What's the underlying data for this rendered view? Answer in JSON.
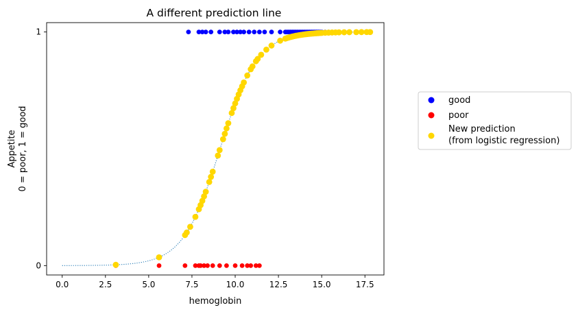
{
  "chart_data": {
    "type": "scatter",
    "title": "A different prediction line",
    "xlabel": "hemoglobin",
    "ylabel_lines": [
      "Appetite",
      "0 = poor, 1 = good"
    ],
    "xlim": [
      -0.9,
      18.6
    ],
    "ylim": [
      -0.04,
      1.04
    ],
    "x_ticks": [
      0.0,
      2.5,
      5.0,
      7.5,
      10.0,
      12.5,
      15.0,
      17.5
    ],
    "x_tick_labels": [
      "0.0",
      "2.5",
      "5.0",
      "7.5",
      "10.0",
      "12.5",
      "15.0",
      "17.5"
    ],
    "y_ticks": [
      0,
      1
    ],
    "y_tick_labels": [
      "0",
      "1"
    ],
    "legend_position": "outside-right",
    "grid": false,
    "logistic_curve": {
      "intercept": -8.54,
      "slope": 0.936,
      "x_range": [
        0,
        18
      ],
      "style": "dotted",
      "color": "#1f77b4"
    },
    "series": [
      {
        "name": "good",
        "color": "#0000ff",
        "y": 1,
        "x": [
          7.3,
          7.9,
          8.1,
          8.3,
          8.6,
          9.1,
          9.4,
          9.6,
          9.9,
          10.1,
          10.3,
          10.5,
          10.8,
          11.1,
          11.4,
          11.7,
          12.1,
          12.6,
          12.9,
          13.0,
          13.1,
          13.2,
          13.3,
          13.4,
          13.5,
          13.6,
          13.7,
          13.8,
          13.9,
          14.0,
          14.1,
          14.2,
          14.3,
          14.4,
          14.5,
          14.6,
          14.7,
          14.8,
          14.9,
          15.0,
          15.2,
          15.4,
          15.6,
          15.8,
          16.0,
          16.3,
          16.6,
          17.0,
          17.3,
          17.6
        ]
      },
      {
        "name": "poor",
        "color": "#ff0000",
        "y": 0,
        "x": [
          3.1,
          5.6,
          7.1,
          7.7,
          7.9,
          8.0,
          8.2,
          8.4,
          8.7,
          9.1,
          9.5,
          10.0,
          10.4,
          10.7,
          10.9,
          11.2,
          11.4
        ]
      },
      {
        "name": "New prediction\n(from logistic regression)",
        "color": "#ffd700",
        "from_curve": true,
        "x": [
          3.1,
          5.6,
          7.1,
          7.2,
          7.4,
          7.7,
          7.9,
          8.0,
          8.1,
          8.2,
          8.3,
          8.5,
          8.6,
          8.7,
          9.0,
          9.1,
          9.3,
          9.4,
          9.5,
          9.6,
          9.8,
          9.9,
          10.0,
          10.1,
          10.2,
          10.3,
          10.4,
          10.5,
          10.7,
          10.9,
          11.0,
          11.2,
          11.3,
          11.5,
          11.8,
          12.1,
          12.6,
          12.9,
          13.0,
          13.1,
          13.2,
          13.3,
          13.4,
          13.5,
          13.6,
          13.7,
          13.8,
          13.9,
          14.0,
          14.1,
          14.2,
          14.3,
          14.4,
          14.5,
          14.6,
          14.7,
          14.8,
          14.9,
          15.0,
          15.2,
          15.4,
          15.6,
          15.8,
          16.0,
          16.3,
          16.6,
          17.0,
          17.3,
          17.6,
          17.8
        ]
      }
    ]
  }
}
